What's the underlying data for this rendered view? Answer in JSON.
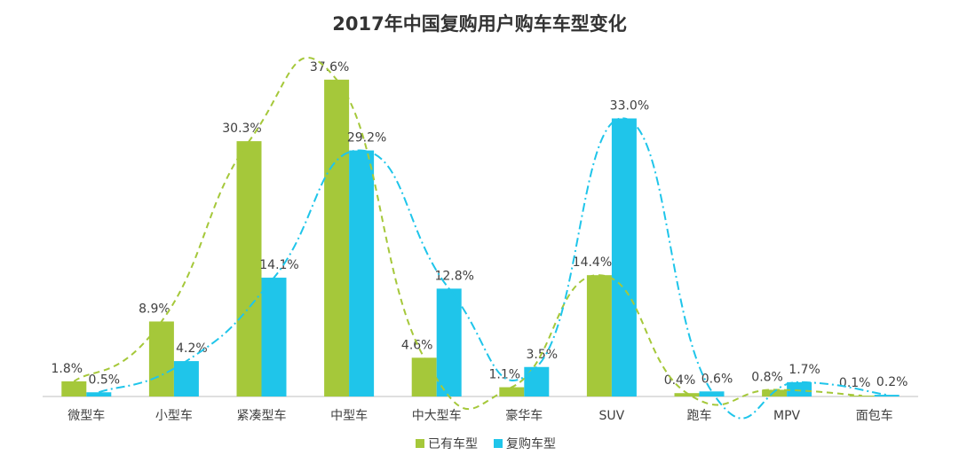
{
  "chart_data": {
    "type": "bar",
    "title": "2017年中国复购用户购车车型变化",
    "categories": [
      "微型车",
      "小型车",
      "紧凑型车",
      "中型车",
      "中大型车",
      "豪华车",
      "SUV",
      "跑车",
      "MPV",
      "面包车"
    ],
    "series": [
      {
        "name": "已有车型",
        "color": "#a5c83a",
        "values": [
          1.8,
          8.9,
          30.3,
          37.6,
          4.6,
          1.1,
          14.4,
          0.4,
          0.8,
          0.1
        ],
        "value_labels": [
          "1.8%",
          "8.9%",
          "30.3%",
          "37.6%",
          "4.6%",
          "1.1%",
          "14.4%",
          "0.4%",
          "0.8%",
          "0.1%"
        ]
      },
      {
        "name": "复购车型",
        "color": "#1fc5ea",
        "values": [
          0.5,
          4.2,
          14.1,
          29.2,
          12.8,
          3.5,
          33.0,
          0.6,
          1.7,
          0.2
        ],
        "value_labels": [
          "0.5%",
          "4.2%",
          "14.1%",
          "29.2%",
          "12.8%",
          "3.5%",
          "33.0%",
          "0.6%",
          "1.7%",
          "0.2%"
        ]
      }
    ]
  }
}
